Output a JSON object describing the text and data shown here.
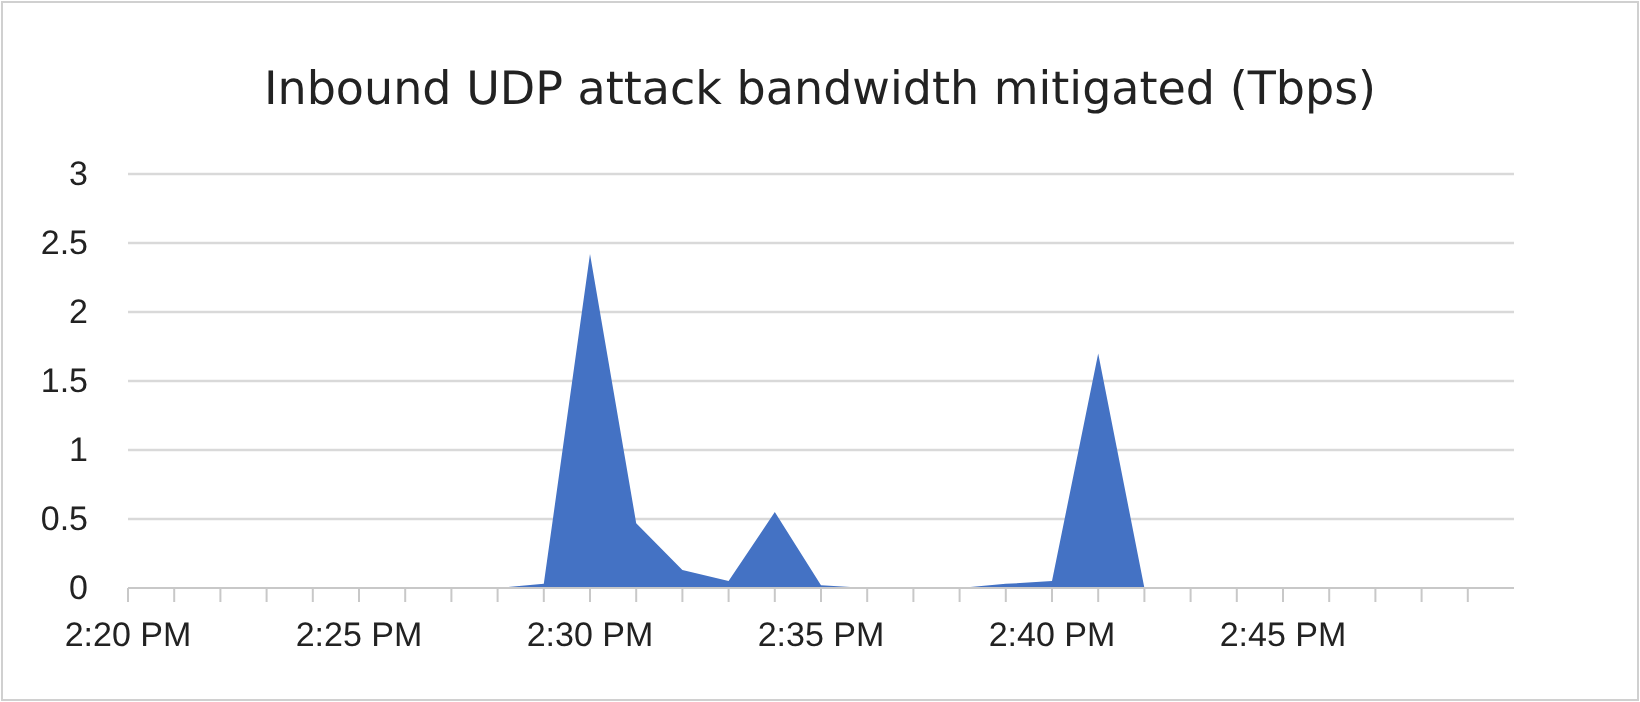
{
  "chart_data": {
    "type": "area",
    "title": "Inbound UDP attack bandwidth mitigated (Tbps)",
    "x": [
      14.333333,
      14.35,
      14.366667,
      14.383333,
      14.4,
      14.416667,
      14.433333,
      14.45,
      14.466667,
      14.483333,
      14.5,
      14.516667,
      14.533333,
      14.55,
      14.566667,
      14.583333,
      14.6,
      14.616667,
      14.633333,
      14.65,
      14.666667,
      14.683333,
      14.7,
      14.716667,
      14.733333,
      14.75,
      14.766667,
      14.783333,
      14.8,
      14.816667,
      14.833333
    ],
    "series": [
      {
        "color": "#4472c4",
        "values": [
          0,
          0,
          0,
          0,
          0,
          0,
          0,
          0,
          0,
          0.03,
          2.42,
          0.47,
          0.13,
          0.05,
          0.55,
          0.02,
          0,
          0,
          0,
          0.03,
          0.05,
          1.7,
          0,
          0,
          0,
          0,
          0,
          0,
          0,
          0,
          0
        ]
      }
    ],
    "xlim": [
      14.333333,
      14.833333
    ],
    "xticks": [
      {
        "value": 14.333333,
        "label": "2:20 PM"
      },
      {
        "value": 14.35,
        "label": null
      },
      {
        "value": 14.366667,
        "label": null
      },
      {
        "value": 14.383333,
        "label": null
      },
      {
        "value": 14.4,
        "label": null
      },
      {
        "value": 14.416667,
        "label": "2:25 PM"
      },
      {
        "value": 14.433333,
        "label": null
      },
      {
        "value": 14.45,
        "label": null
      },
      {
        "value": 14.466667,
        "label": null
      },
      {
        "value": 14.483333,
        "label": null
      },
      {
        "value": 14.5,
        "label": "2:30 PM"
      },
      {
        "value": 14.516667,
        "label": null
      },
      {
        "value": 14.533333,
        "label": null
      },
      {
        "value": 14.55,
        "label": null
      },
      {
        "value": 14.566667,
        "label": null
      },
      {
        "value": 14.583333,
        "label": "2:35 PM"
      },
      {
        "value": 14.6,
        "label": null
      },
      {
        "value": 14.616667,
        "label": null
      },
      {
        "value": 14.633333,
        "label": null
      },
      {
        "value": 14.65,
        "label": null
      },
      {
        "value": 14.666667,
        "label": "2:40 PM"
      },
      {
        "value": 14.683333,
        "label": null
      },
      {
        "value": 14.7,
        "label": null
      },
      {
        "value": 14.716667,
        "label": null
      },
      {
        "value": 14.733333,
        "label": null
      },
      {
        "value": 14.75,
        "label": "2:45 PM"
      },
      {
        "value": 14.766667,
        "label": null
      },
      {
        "value": 14.783333,
        "label": null
      },
      {
        "value": 14.8,
        "label": null
      },
      {
        "value": 14.816667,
        "label": null
      }
    ],
    "ylim": [
      0,
      3
    ],
    "yticks": [
      0,
      0.5,
      1,
      1.5,
      2,
      2.5,
      3
    ],
    "grid": "y"
  }
}
